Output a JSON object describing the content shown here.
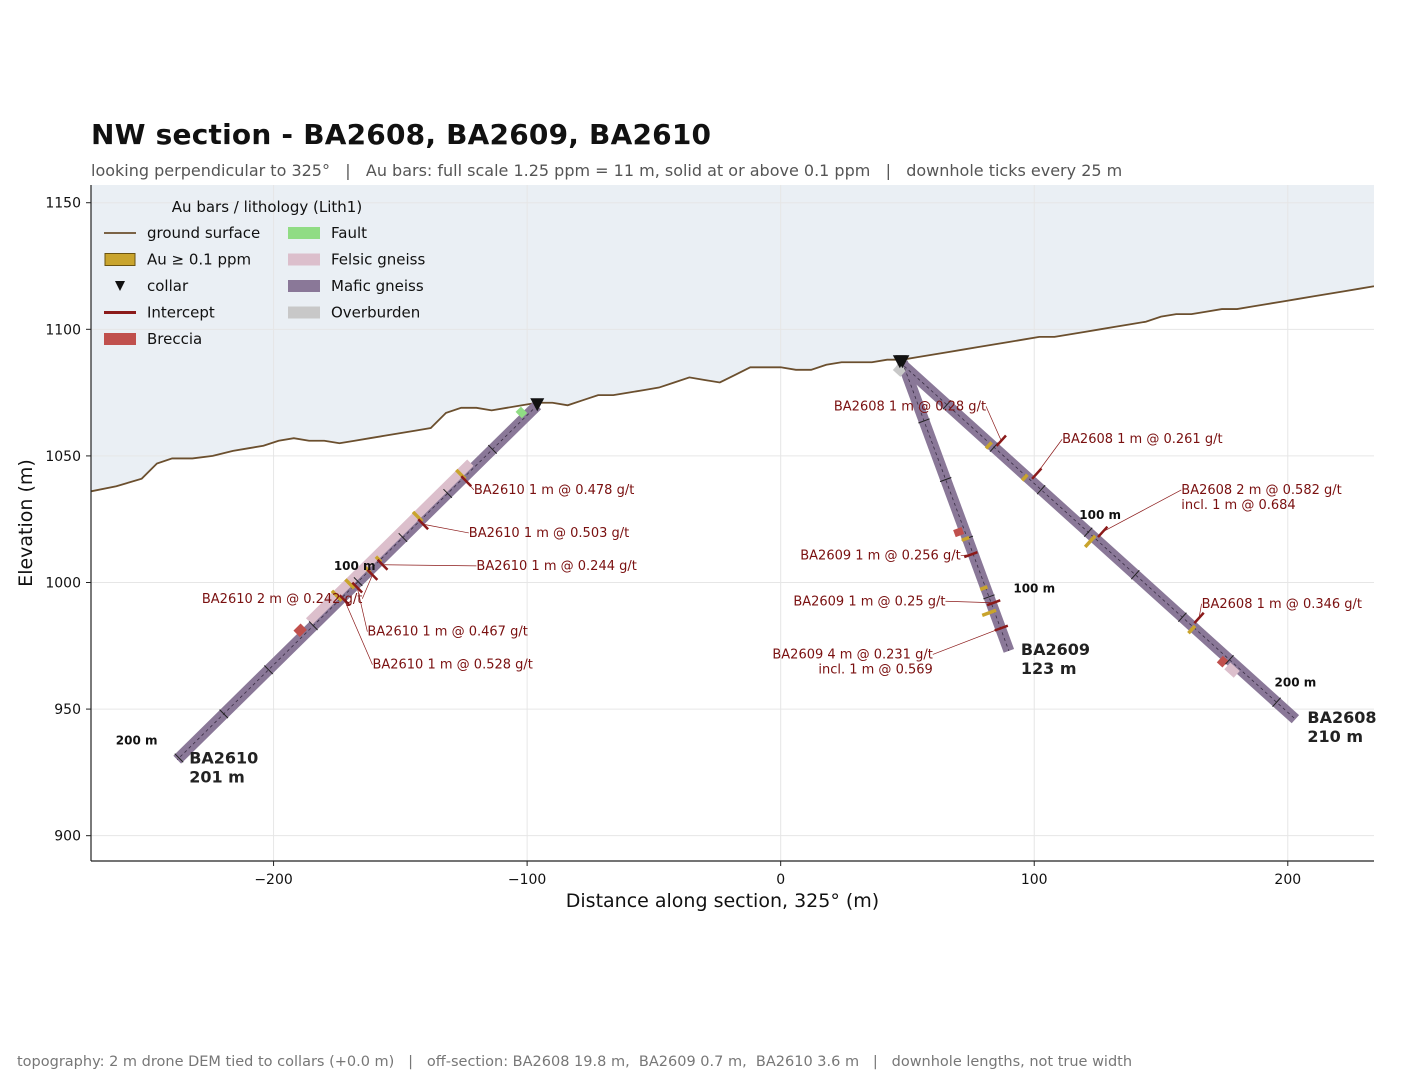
{
  "title": "NW section  -  BA2608, BA2609, BA2610",
  "subtitle": "looking perpendicular to 325°   |   Au bars: full scale 1.25 ppm = 11 m, solid at or above 0.1 ppm   |   downhole ticks every 25 m",
  "footer": "topography: 2 m drone DEM tied to collars (+0.0 m)   |   off-section: BA2608 19.8 m,  BA2609 0.7 m,  BA2610 3.6 m   |   downhole lengths, not true width",
  "chart_data": {
    "type": "line",
    "xlabel": "Distance along section, 325°  (m)",
    "ylabel": "Elevation (m)",
    "xlim": [
      -272,
      234
    ],
    "ylim": [
      890,
      1157
    ],
    "x_ticks": [
      -200,
      -100,
      0,
      100,
      200
    ],
    "y_ticks": [
      900,
      950,
      1000,
      1050,
      1100,
      1150
    ],
    "x_tick_labels": [
      "−200",
      "−100",
      "0",
      "100",
      "200"
    ],
    "y_tick_labels": [
      "900",
      "950",
      "1000",
      "1050",
      "1100",
      "1150"
    ],
    "grid": true,
    "colors": {
      "ground": "#6b4f2e",
      "sky": "#eaeff4",
      "au": "#c9a42d",
      "intercept": "#8b1a1a",
      "breccia": "#c0504d",
      "fault": "#90dc84",
      "felsic": "#dcbfcc",
      "mafic": "#8a7898",
      "overburden": "#c8c8c8",
      "annotation": "#7a1010"
    },
    "legend": {
      "title": "Au bars / lithology (Lith1)",
      "placement": "top-left",
      "items": [
        {
          "label": "ground surface",
          "kind": "line",
          "color": "#6b4f2e"
        },
        {
          "label": "Au ≥ 0.1 ppm",
          "kind": "box",
          "color": "#c9a42d"
        },
        {
          "label": "collar",
          "kind": "triangle",
          "color": "#111111"
        },
        {
          "label": "Intercept",
          "kind": "thickline",
          "color": "#8b1a1a"
        },
        {
          "label": "Breccia",
          "kind": "patch",
          "color": "#c0504d"
        },
        {
          "label": "Fault",
          "kind": "patch",
          "color": "#90dc84"
        },
        {
          "label": "Felsic gneiss",
          "kind": "patch",
          "color": "#dcbfcc"
        },
        {
          "label": "Mafic gneiss",
          "kind": "patch",
          "color": "#8a7898"
        },
        {
          "label": "Overburden",
          "kind": "patch",
          "color": "#c8c8c8"
        }
      ]
    },
    "ground_surface": {
      "x": [
        -272,
        -262,
        -252,
        -246,
        -240,
        -232,
        -224,
        -216,
        -210,
        -204,
        -198,
        -192,
        -186,
        -180,
        -174,
        -168,
        -162,
        -156,
        -150,
        -144,
        -138,
        -132,
        -126,
        -120,
        -114,
        -108,
        -102,
        -96,
        -90,
        -84,
        -78,
        -72,
        -66,
        -60,
        -54,
        -48,
        -42,
        -36,
        -30,
        -24,
        -18,
        -12,
        -6,
        0,
        6,
        12,
        18,
        24,
        30,
        36,
        42,
        48,
        54,
        60,
        66,
        72,
        78,
        84,
        90,
        96,
        102,
        108,
        114,
        120,
        126,
        132,
        138,
        144,
        150,
        156,
        162,
        168,
        174,
        180,
        186,
        192,
        198,
        204,
        210,
        216,
        222,
        228,
        234
      ],
      "y": [
        1036,
        1038,
        1041,
        1047,
        1049,
        1049,
        1050,
        1052,
        1053,
        1054,
        1056,
        1057,
        1056,
        1056,
        1055,
        1056,
        1057,
        1058,
        1059,
        1060,
        1061,
        1067,
        1069,
        1069,
        1068,
        1069,
        1070,
        1071,
        1071,
        1070,
        1072,
        1074,
        1074,
        1075,
        1076,
        1077,
        1079,
        1081,
        1080,
        1079,
        1082,
        1085,
        1085,
        1085,
        1084,
        1084,
        1086,
        1087,
        1087,
        1087,
        1088,
        1088,
        1089,
        1090,
        1091,
        1092,
        1093,
        1094,
        1095,
        1096,
        1097,
        1097,
        1098,
        1099,
        1100,
        1101,
        1102,
        1103,
        1105,
        1106,
        1106,
        1107,
        1108,
        1108,
        1109,
        1110,
        1111,
        1112,
        1113,
        1114,
        1115,
        1116,
        1117
      ]
    },
    "holes": [
      {
        "name": "BA2608",
        "length_label": "210 m",
        "length": 210,
        "collar": [
          47,
          1087
        ],
        "end": [
          203,
          946
        ]
      },
      {
        "name": "BA2609",
        "length_label": "123 m",
        "length": 123,
        "collar": [
          48,
          1087
        ],
        "end": [
          90,
          973
        ]
      },
      {
        "name": "BA2610",
        "length_label": "201 m",
        "length": 201,
        "collar": [
          -96,
          1070
        ],
        "end": [
          -238,
          930
        ]
      }
    ],
    "downhole_labels": [
      {
        "text": "100 m",
        "hole": "BA2610",
        "x": -168,
        "y": 1005
      },
      {
        "text": "200 m",
        "hole": "BA2610",
        "x": -254,
        "y": 936
      },
      {
        "text": "100 m",
        "hole": "BA2609",
        "x": 100,
        "y": 996
      },
      {
        "text": "100 m",
        "hole": "BA2608",
        "x": 126,
        "y": 1025
      },
      {
        "text": "200 m",
        "hole": "BA2608",
        "x": 203,
        "y": 959
      }
    ],
    "intercepts": [
      {
        "hole": "BA2608",
        "label": "BA2608  1 m @ 0.28 g/t",
        "x": 87,
        "y": 1056,
        "label_x": 81,
        "label_y": 1068
      },
      {
        "hole": "BA2608",
        "label": "BA2608  1 m @ 0.261 g/t",
        "x": 101,
        "y": 1043,
        "label_x": 111,
        "label_y": 1055
      },
      {
        "hole": "BA2608",
        "label": "BA2608  2 m @ 0.582 g/t",
        "sublabel": "incl. 1 m @ 0.684",
        "x": 127,
        "y": 1020,
        "label_x": 158,
        "label_y": 1035
      },
      {
        "hole": "BA2608",
        "label": "BA2608  1 m @ 0.346 g/t",
        "x": 165,
        "y": 986,
        "label_x": 166,
        "label_y": 990
      },
      {
        "hole": "BA2609",
        "label": "BA2609  1 m @ 0.256 g/t",
        "x": 75,
        "y": 1011,
        "label_x": 71,
        "label_y": 1009
      },
      {
        "hole": "BA2609",
        "label": "BA2609  1 m @ 0.25 g/t",
        "x": 84,
        "y": 992,
        "label_x": 65,
        "label_y": 991
      },
      {
        "hole": "BA2609",
        "label": "BA2609  4 m @ 0.231 g/t",
        "sublabel": "incl. 1 m @ 0.569",
        "x": 87,
        "y": 982,
        "label_x": 60,
        "label_y": 970
      },
      {
        "hole": "BA2610",
        "label": "BA2610  1 m @ 0.478 g/t",
        "x": -124,
        "y": 1040,
        "label_x": -121,
        "label_y": 1035
      },
      {
        "hole": "BA2610",
        "label": "BA2610  1 m @ 0.503 g/t",
        "x": -141,
        "y": 1023,
        "label_x": -123,
        "label_y": 1018
      },
      {
        "hole": "BA2610",
        "label": "BA2610  1 m @ 0.244 g/t",
        "x": -157,
        "y": 1007,
        "label_x": -120,
        "label_y": 1005
      },
      {
        "hole": "BA2610",
        "label": "BA2610  2 m @ 0.242 g/t",
        "x": -161,
        "y": 1003,
        "label_x": -165,
        "label_y": 992
      },
      {
        "hole": "BA2610",
        "label": "BA2610  1 m @ 0.467 g/t",
        "x": -167,
        "y": 998,
        "label_x": -163,
        "label_y": 979
      },
      {
        "hole": "BA2610",
        "label": "BA2610  1 m @ 0.528 g/t",
        "x": -172,
        "y": 993,
        "label_x": -161,
        "label_y": 966
      }
    ],
    "hole_intervals": [
      {
        "hole": "BA2610",
        "lith": "felsic",
        "from": 35,
        "to": 125
      },
      {
        "hole": "BA2610",
        "lith": "breccia",
        "from": 128,
        "to": 132
      },
      {
        "hole": "BA2610",
        "lith": "fault",
        "from": 5,
        "to": 8
      },
      {
        "hole": "BA2608",
        "lith": "overburden",
        "from": 0,
        "to": 4
      },
      {
        "hole": "BA2608",
        "lith": "breccia",
        "from": 172,
        "to": 175
      },
      {
        "hole": "BA2608",
        "lith": "felsic",
        "from": 176,
        "to": 181
      },
      {
        "hole": "BA2609",
        "lith": "breccia",
        "from": 70,
        "to": 73
      }
    ],
    "au_bars": [
      {
        "hole": "BA2610",
        "at": 41,
        "value": 0.48
      },
      {
        "hole": "BA2610",
        "at": 65,
        "value": 0.5
      },
      {
        "hole": "BA2610",
        "at": 88,
        "value": 0.24
      },
      {
        "hole": "BA2610",
        "at": 94,
        "value": 0.24
      },
      {
        "hole": "BA2610",
        "at": 103,
        "value": 0.47
      },
      {
        "hole": "BA2610",
        "at": 110,
        "value": 0.53
      },
      {
        "hole": "BA2608",
        "at": 48,
        "value": 0.28
      },
      {
        "hole": "BA2608",
        "at": 67,
        "value": 0.26
      },
      {
        "hole": "BA2608",
        "at": 103,
        "value": 0.58
      },
      {
        "hole": "BA2608",
        "at": 156,
        "value": 0.35
      },
      {
        "hole": "BA2609",
        "at": 75,
        "value": 0.26
      },
      {
        "hole": "BA2609",
        "at": 96,
        "value": 0.25
      },
      {
        "hole": "BA2609",
        "at": 106,
        "value": 0.57
      }
    ]
  }
}
